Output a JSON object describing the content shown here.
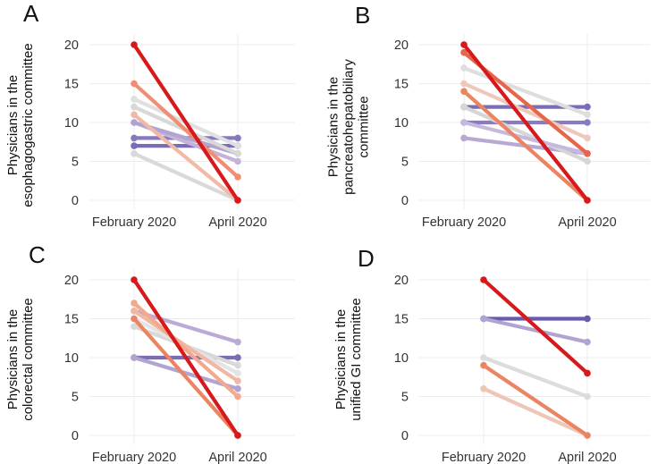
{
  "chart_data": [
    {
      "type": "line",
      "panel": "A",
      "ylabel_lines": [
        "Physicians in the",
        "esophagogastric committee"
      ],
      "categories": [
        "February 2020",
        "April 2020"
      ],
      "yticks": [
        "0",
        "5",
        "10",
        "15",
        "20"
      ],
      "ylim": [
        0,
        20
      ],
      "series": [
        {
          "values": [
            6,
            0
          ],
          "color": "#d9d9d9"
        },
        {
          "values": [
            7,
            7
          ],
          "color": "#7b6db5"
        },
        {
          "values": [
            8,
            8
          ],
          "color": "#8878bd"
        },
        {
          "values": [
            10,
            5
          ],
          "color": "#c2b4da"
        },
        {
          "values": [
            10,
            6
          ],
          "color": "#b2a4d1"
        },
        {
          "values": [
            12,
            6
          ],
          "color": "#d8d8d8"
        },
        {
          "values": [
            13,
            7
          ],
          "color": "#e0e0e0"
        },
        {
          "values": [
            11,
            0
          ],
          "color": "#f2b9a6"
        },
        {
          "values": [
            15,
            3
          ],
          "color": "#ef8e72"
        },
        {
          "values": [
            20,
            0
          ],
          "color": "#d7191c"
        }
      ]
    },
    {
      "type": "line",
      "panel": "B",
      "ylabel_lines": [
        "Physicians in the",
        "pancreatohepatobiliary",
        "committee"
      ],
      "categories": [
        "February 2020",
        "April 2020"
      ],
      "yticks": [
        "0",
        "5",
        "10",
        "15",
        "20"
      ],
      "ylim": [
        0,
        20
      ],
      "series": [
        {
          "values": [
            8,
            6
          ],
          "color": "#b8a8d4"
        },
        {
          "values": [
            10,
            10
          ],
          "color": "#8a7bbe"
        },
        {
          "values": [
            12,
            12
          ],
          "color": "#7b6db5"
        },
        {
          "values": [
            12,
            5
          ],
          "color": "#d6d6d6"
        },
        {
          "values": [
            10,
            6
          ],
          "color": "#c6b9dd"
        },
        {
          "values": [
            15,
            8
          ],
          "color": "#eec9bb"
        },
        {
          "values": [
            17,
            11
          ],
          "color": "#dedede"
        },
        {
          "values": [
            14,
            0
          ],
          "color": "#ec8461"
        },
        {
          "values": [
            19,
            6
          ],
          "color": "#e6654b"
        },
        {
          "values": [
            20,
            0
          ],
          "color": "#d7191c"
        }
      ]
    },
    {
      "type": "line",
      "panel": "C",
      "ylabel_lines": [
        "Physicians in the",
        "colorectal committee"
      ],
      "categories": [
        "February 2020",
        "April 2020"
      ],
      "yticks": [
        "0",
        "5",
        "10",
        "15",
        "20"
      ],
      "ylim": [
        0,
        20
      ],
      "series": [
        {
          "values": [
            10,
            10
          ],
          "color": "#7b6db5"
        },
        {
          "values": [
            10,
            6
          ],
          "color": "#b2a4d1"
        },
        {
          "values": [
            16,
            12
          ],
          "color": "#bba9d6"
        },
        {
          "values": [
            14,
            9
          ],
          "color": "#d8d8d8"
        },
        {
          "values": [
            15,
            8
          ],
          "color": "#e4e4e4"
        },
        {
          "values": [
            16,
            7
          ],
          "color": "#f0b8a4"
        },
        {
          "values": [
            17,
            5
          ],
          "color": "#f3a98e"
        },
        {
          "values": [
            15,
            0
          ],
          "color": "#ec8461"
        },
        {
          "values": [
            20,
            0
          ],
          "color": "#d7191c"
        }
      ]
    },
    {
      "type": "line",
      "panel": "D",
      "ylabel_lines": [
        "Physicians in the",
        "unified GI committee"
      ],
      "categories": [
        "February 2020",
        "April 2020"
      ],
      "yticks": [
        "0",
        "5",
        "10",
        "15",
        "20"
      ],
      "ylim": [
        0,
        20
      ],
      "series": [
        {
          "values": [
            15,
            15
          ],
          "color": "#6a5aad"
        },
        {
          "values": [
            15,
            12
          ],
          "color": "#b2a4d1"
        },
        {
          "values": [
            10,
            5
          ],
          "color": "#dcdcdc"
        },
        {
          "values": [
            6,
            0
          ],
          "color": "#eec6b8"
        },
        {
          "values": [
            9,
            0
          ],
          "color": "#ec8461"
        },
        {
          "values": [
            20,
            8
          ],
          "color": "#d7191c"
        }
      ]
    }
  ]
}
